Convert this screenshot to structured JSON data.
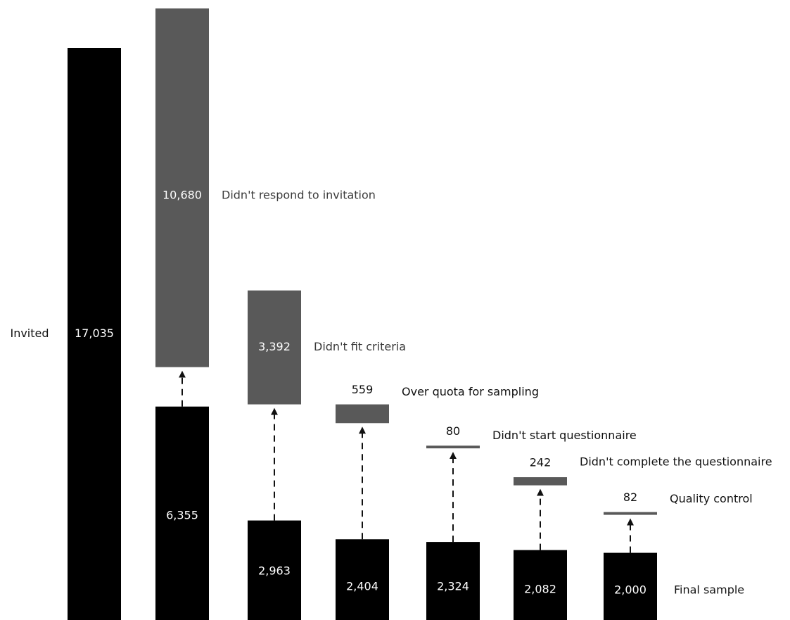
{
  "colors": {
    "remaining": "#000000",
    "removed": "#595959",
    "arrow": "#111111",
    "background": "#ffffff"
  },
  "chart_data": {
    "type": "bar",
    "subtype": "waterfall-attrition",
    "start": {
      "label": "Invited",
      "value": 17035,
      "value_label": "17,035"
    },
    "steps": [
      {
        "removed": 10680,
        "removed_label": "10,680",
        "reason": "Didn't respond to invitation",
        "remaining": 6355,
        "remaining_label": "6,355"
      },
      {
        "removed": 3392,
        "removed_label": "3,392",
        "reason": "Didn't fit criteria",
        "remaining": 2963,
        "remaining_label": "2,963"
      },
      {
        "removed": 559,
        "removed_label": "559",
        "reason": "Over quota for sampling",
        "remaining": 2404,
        "remaining_label": "2,404"
      },
      {
        "removed": 80,
        "removed_label": "80",
        "reason": "Didn't start questionnaire",
        "remaining": 2324,
        "remaining_label": "2,324"
      },
      {
        "removed": 242,
        "removed_label": "242",
        "reason": "Didn't complete the questionnaire",
        "remaining": 2082,
        "remaining_label": "2,082"
      },
      {
        "removed": 82,
        "removed_label": "82",
        "reason": "Quality control",
        "remaining": 2000,
        "remaining_label": "2,000"
      }
    ],
    "final_label": "Final sample",
    "grid": false,
    "legend": "none"
  }
}
